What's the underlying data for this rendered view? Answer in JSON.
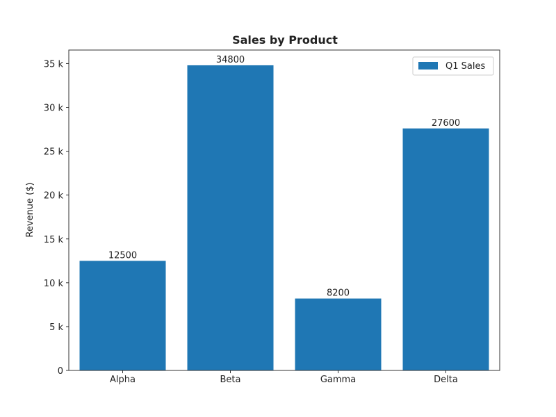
{
  "chart_data": {
    "type": "bar",
    "title": "Sales by Product",
    "xlabel": "",
    "ylabel": "Revenue ($)",
    "categories": [
      "Alpha",
      "Beta",
      "Gamma",
      "Delta"
    ],
    "series": [
      {
        "name": "Q1 Sales",
        "values": [
          12500,
          34800,
          8200,
          27600
        ],
        "color": "#1f77b4"
      }
    ],
    "data_labels": [
      "12500",
      "34800",
      "8200",
      "27600"
    ],
    "ylim": [
      0,
      36540
    ],
    "yticks": [
      0,
      5000,
      10000,
      15000,
      20000,
      25000,
      30000,
      35000
    ],
    "ytick_labels": [
      "0",
      "5 k",
      "10 k",
      "15 k",
      "20 k",
      "25 k",
      "30 k",
      "35 k"
    ],
    "grid": false,
    "legend": {
      "position": "top-right"
    }
  }
}
